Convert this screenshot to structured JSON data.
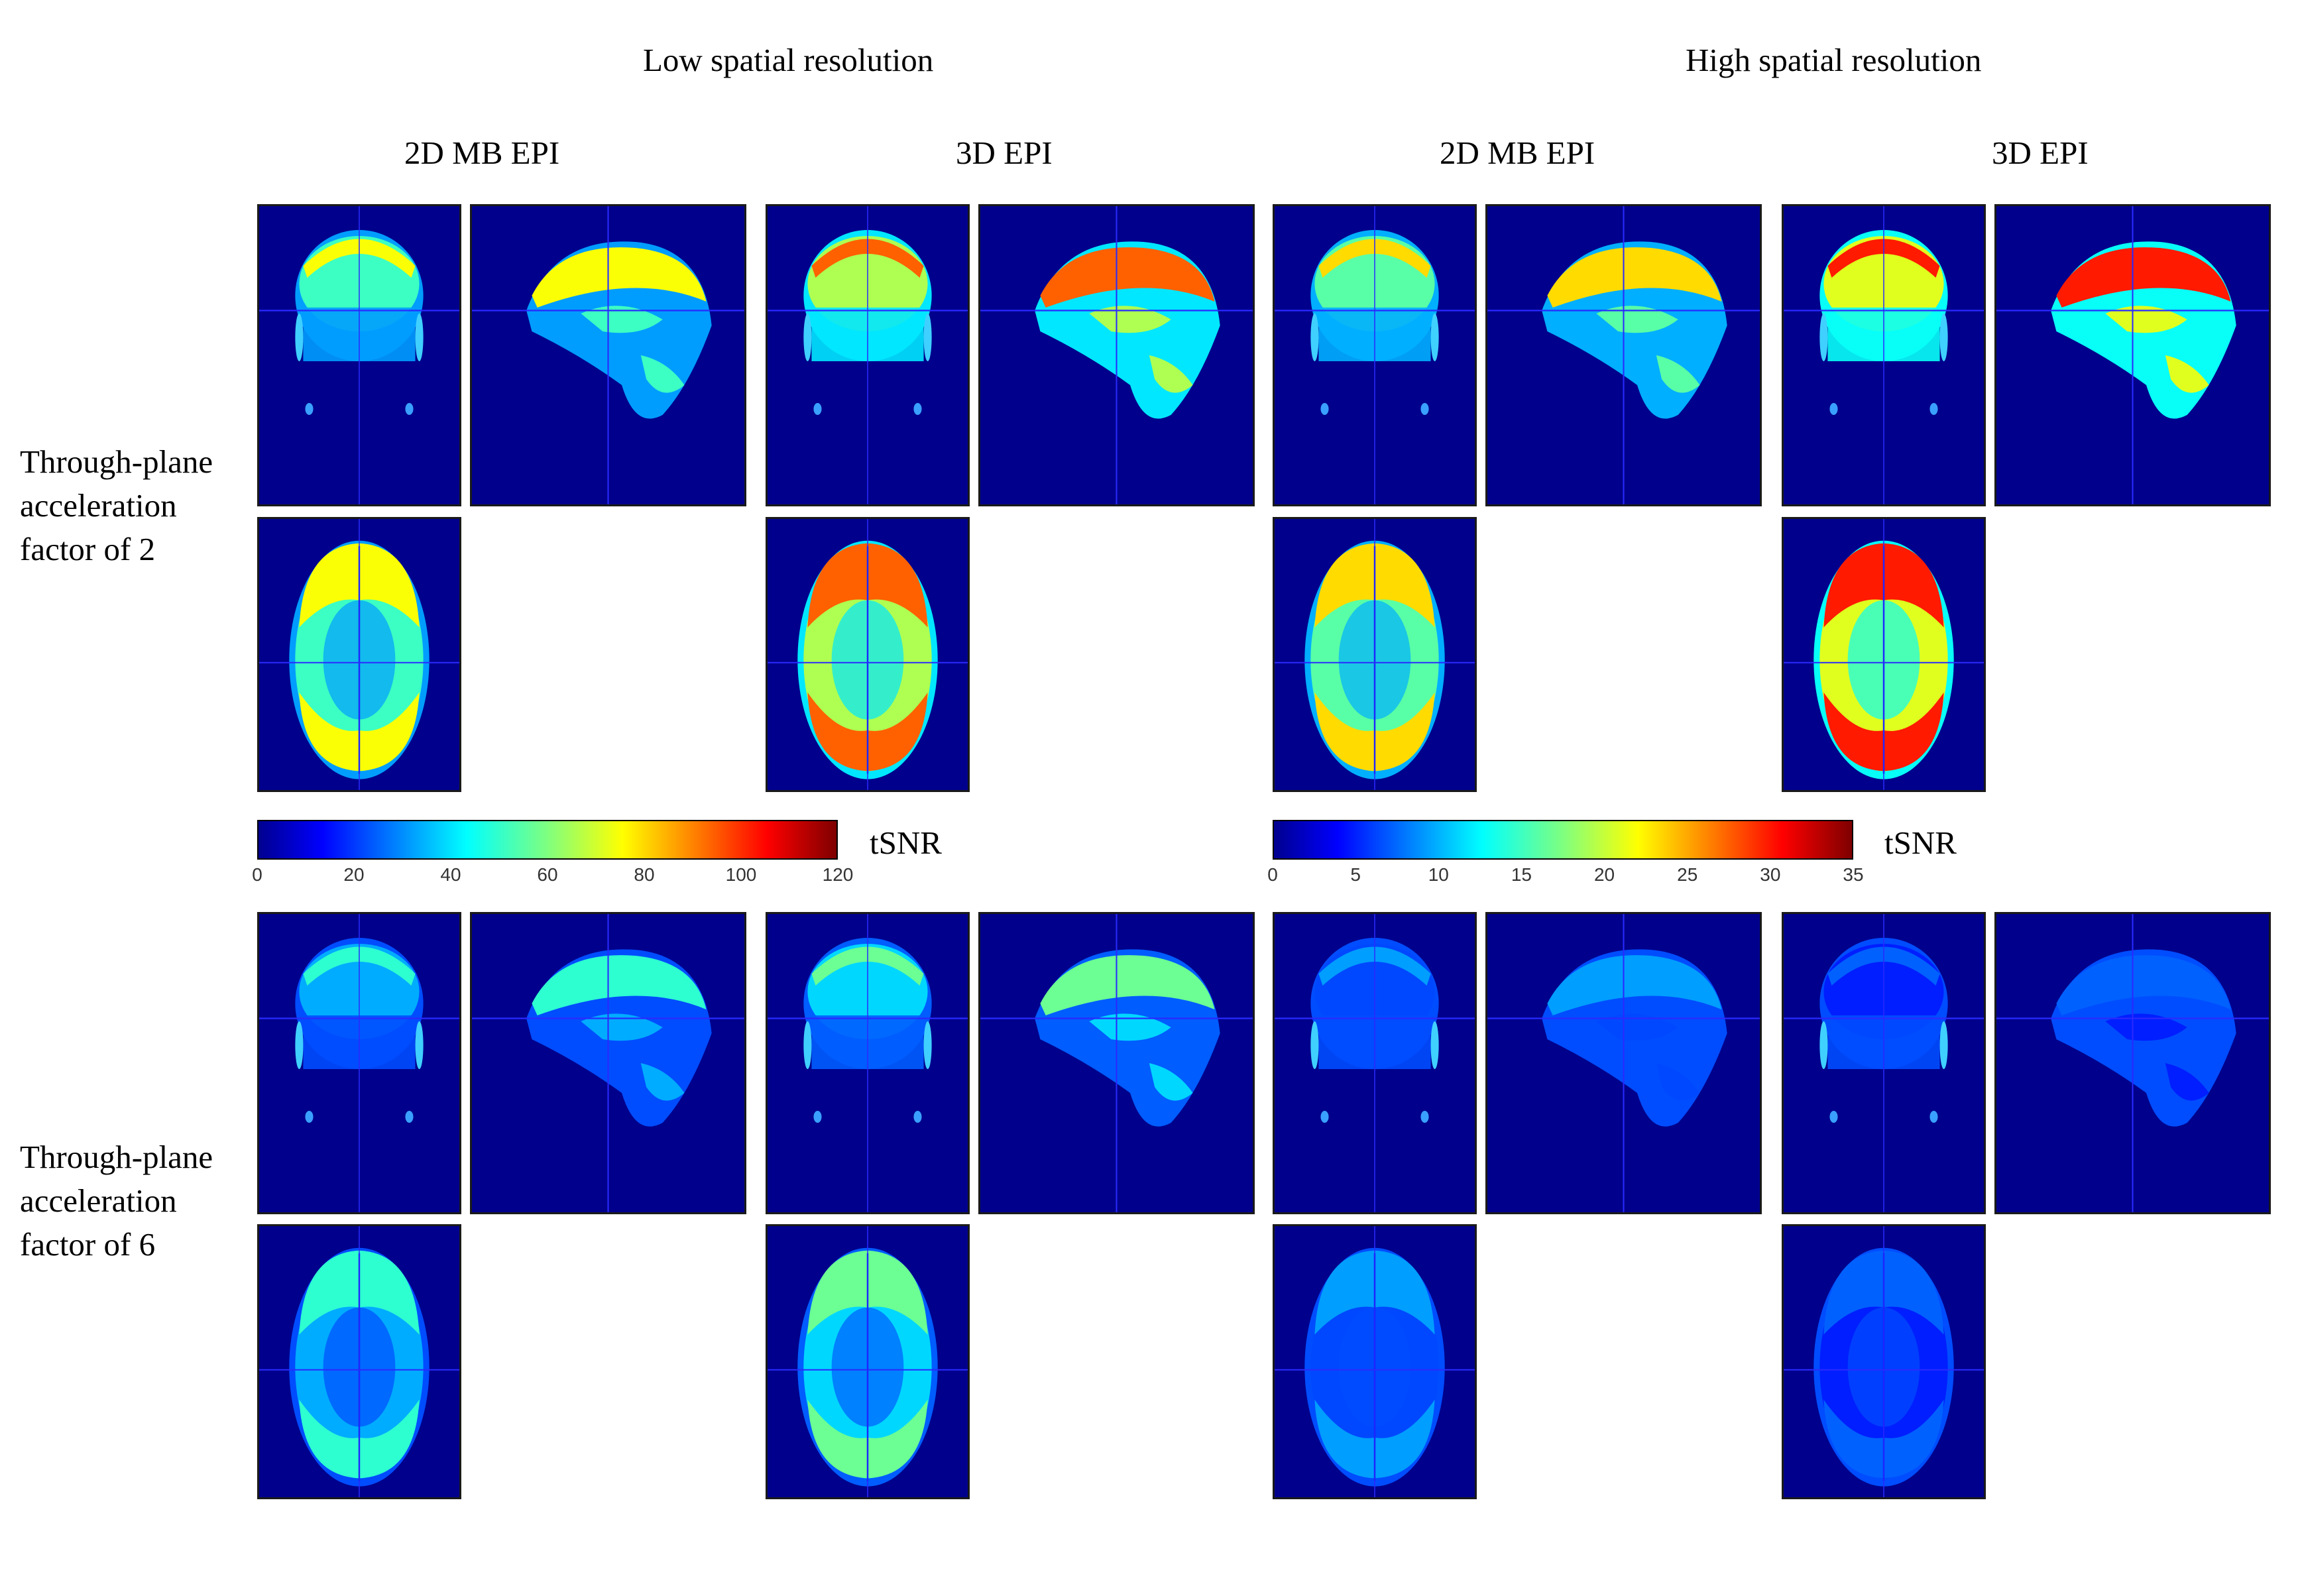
{
  "groups": [
    {
      "title": "Low spatial resolution"
    },
    {
      "title": "High spatial resolution"
    }
  ],
  "columns": [
    {
      "title": "2D MB EPI"
    },
    {
      "title": "3D EPI"
    },
    {
      "title": "2D MB EPI"
    },
    {
      "title": "3D EPI"
    }
  ],
  "rows": [
    {
      "label": "Through-plane acceleration factor of 2"
    },
    {
      "label": "Through-plane acceleration factor of 6"
    }
  ],
  "colorbars": [
    {
      "label": "tSNR",
      "min": 0,
      "max": 120,
      "ticks": [
        "0",
        "20",
        "40",
        "60",
        "80",
        "100",
        "120"
      ],
      "colormap": "jet"
    },
    {
      "label": "tSNR",
      "min": 0,
      "max": 35,
      "ticks": [
        "0",
        "5",
        "10",
        "15",
        "20",
        "25",
        "30",
        "35"
      ],
      "colormap": "jet"
    }
  ],
  "colors": {
    "background": "#00008c",
    "crosshair": "#2a2aff"
  },
  "panels_intensity": [
    [
      0.62,
      0.78,
      0.66,
      0.85
    ],
    [
      0.42,
      0.48,
      0.28,
      0.22
    ]
  ]
}
